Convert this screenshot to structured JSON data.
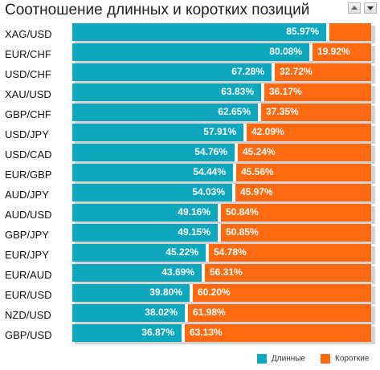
{
  "header": {
    "title": "Соотношение длинных и коротких позиций"
  },
  "colors": {
    "long": "#0ea7bd",
    "short": "#ff6a10"
  },
  "chart_data": {
    "type": "bar",
    "orientation": "horizontal",
    "stacked": true,
    "title": "Соотношение длинных и коротких позиций",
    "categories": [
      "XAG/USD",
      "EUR/CHF",
      "USD/CHF",
      "XAU/USD",
      "GBP/CHF",
      "USD/JPY",
      "USD/CAD",
      "EUR/GBP",
      "AUD/JPY",
      "AUD/USD",
      "GBP/JPY",
      "EUR/JPY",
      "EUR/AUD",
      "EUR/USD",
      "NZD/USD",
      "GBP/USD"
    ],
    "long_labels": [
      "85.97%",
      "80.08%",
      "67.28%",
      "63.83%",
      "62.65%",
      "57.91%",
      "54.76%",
      "54.44%",
      "54.03%",
      "49.16%",
      "49.15%",
      "45.22%",
      "43.69%",
      "39.80%",
      "38.02%",
      "36.87%"
    ],
    "short_labels": [
      "",
      "19.92%",
      "32.72%",
      "36.17%",
      "37.35%",
      "42.09%",
      "45.24%",
      "45.56%",
      "45.97%",
      "50.84%",
      "50.85%",
      "54.78%",
      "56.31%",
      "60.20%",
      "61.98%",
      "63.13%"
    ],
    "series": [
      {
        "name": "Длинные",
        "values": [
          85.97,
          80.08,
          67.28,
          63.83,
          62.65,
          57.91,
          54.76,
          54.44,
          54.03,
          49.16,
          49.15,
          45.22,
          43.69,
          39.8,
          38.02,
          36.87
        ]
      },
      {
        "name": "Короткие",
        "values": [
          14.03,
          19.92,
          32.72,
          36.17,
          37.35,
          42.09,
          45.24,
          45.56,
          45.97,
          50.84,
          50.85,
          54.78,
          56.31,
          60.2,
          61.98,
          63.13
        ]
      }
    ],
    "xlim": [
      0,
      100
    ],
    "legend": {
      "position": "bottom-right",
      "items": [
        "Длинные",
        "Короткие"
      ]
    }
  }
}
